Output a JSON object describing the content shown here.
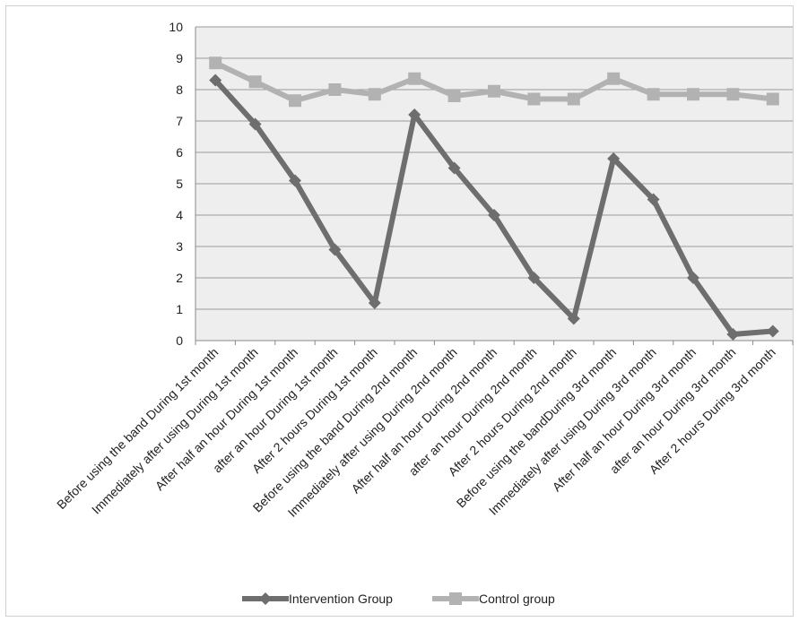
{
  "chart_data": {
    "type": "line",
    "title": "",
    "xlabel": "",
    "ylabel": "",
    "ylim": [
      0,
      10
    ],
    "yticks": [
      0,
      1,
      2,
      3,
      4,
      5,
      6,
      7,
      8,
      9,
      10
    ],
    "grid": "horizontal",
    "legend": "bottom",
    "categories": [
      "Before using the band During 1st month",
      "Immediately after using During 1st month",
      "After half an hour During 1st month",
      "after an hour During 1st month",
      "After 2 hours During 1st month",
      "Before using the band During 2nd  month",
      "Immediately after using During 2nd  month",
      "After half an hour During 2nd  month",
      "after an hour During 2nd  month",
      "After 2 hours During 2nd  month",
      "Before using the bandDuring 3rd  month",
      "Immediately after using During 3rd  month",
      "After half an hour During 3rd  month",
      "after an hour During 3rd  month",
      "After 2 hours During 3rd  month"
    ],
    "series": [
      {
        "name": "Intervention Group",
        "color": "#6e6e6e",
        "marker": "diamond",
        "values": [
          8.3,
          6.9,
          5.1,
          2.9,
          1.2,
          7.2,
          5.5,
          4.0,
          2.0,
          0.7,
          5.8,
          4.5,
          2.0,
          0.2,
          0.3
        ]
      },
      {
        "name": "Control group",
        "color": "#b2b2b2",
        "marker": "square",
        "values": [
          8.85,
          8.25,
          7.65,
          8.0,
          7.85,
          8.35,
          7.8,
          7.95,
          7.7,
          7.7,
          8.35,
          7.85,
          7.85,
          7.85,
          7.7
        ]
      }
    ]
  }
}
